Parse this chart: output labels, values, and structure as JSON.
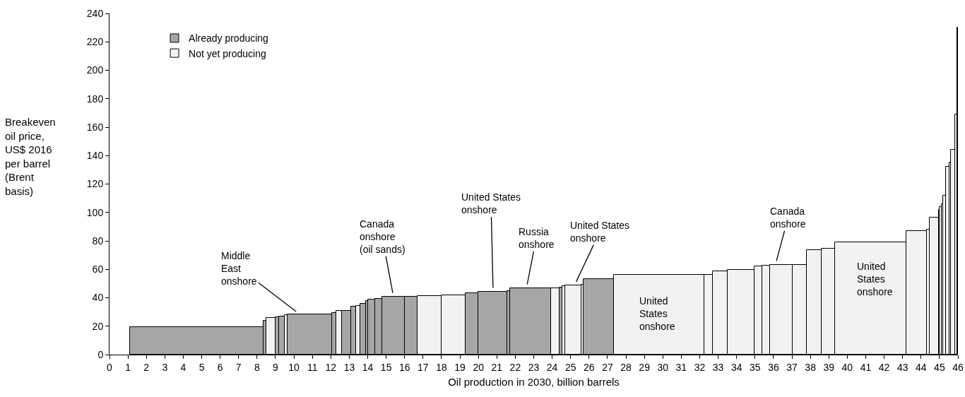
{
  "chart_data": {
    "type": "bar",
    "xlabel": "Oil production in 2030, billion barrels",
    "ylabel": "Breakeven oil price, US$ 2016 per barrel (Brent basis)",
    "x": [
      4.725,
      8.425,
      8.75,
      9.1,
      9.35,
      9.575,
      10.85,
      12.175,
      12.45,
      12.85,
      13.225,
      13.475,
      13.75,
      13.95,
      14.2,
      14.6,
      15.4,
      16.35,
      17.35,
      18.65,
      19.65,
      20.775,
      21.625,
      22.825,
      24.175,
      24.475,
      24.625,
      25.15,
      25.65,
      26.525,
      29.8,
      32.475,
      33.1,
      34.225,
      35.175,
      35.6,
      36.425,
      37.425,
      38.2,
      38.975,
      41.275,
      43.75,
      44.375,
      44.7,
      44.975,
      45.05,
      45.15,
      45.275,
      45.45,
      45.575,
      45.725,
      45.9,
      45.975
    ],
    "series": [
      {
        "name": "Already producing",
        "color": "#a6a6a6",
        "values": [
          19.5,
          24,
          null,
          26.5,
          27,
          null,
          28.5,
          29.5,
          null,
          31,
          34,
          null,
          36,
          38,
          39,
          39.5,
          40.5,
          40.5,
          null,
          null,
          43,
          44,
          44.5,
          46.5,
          null,
          47,
          null,
          null,
          null,
          53,
          null,
          null,
          null,
          null,
          null,
          null,
          null,
          null,
          null,
          null,
          null,
          null,
          null,
          null,
          null,
          null,
          null,
          null,
          null,
          null,
          null,
          null,
          null
        ]
      },
      {
        "name": "Not yet producing",
        "color": "#f2f2f2",
        "values": [
          null,
          null,
          26,
          null,
          null,
          28,
          null,
          null,
          31,
          null,
          null,
          34.5,
          null,
          null,
          null,
          null,
          null,
          null,
          41,
          41.5,
          null,
          null,
          null,
          null,
          46.5,
          null,
          48,
          48.5,
          49,
          null,
          56,
          56,
          58.5,
          59.5,
          62,
          62.5,
          63,
          63,
          73.5,
          74.5,
          79,
          87,
          88,
          96.5,
          102,
          104,
          106,
          112,
          132,
          135,
          144,
          169,
          230
        ]
      }
    ],
    "xlim": [
      0,
      46
    ],
    "xticks": [
      0,
      1,
      2,
      3,
      4,
      5,
      6,
      7,
      8,
      9,
      10,
      11,
      12,
      13,
      14,
      15,
      16,
      17,
      18,
      19,
      20,
      21,
      22,
      23,
      24,
      25,
      26,
      27,
      28,
      29,
      30,
      31,
      32,
      33,
      34,
      35,
      36,
      37,
      38,
      39,
      40,
      41,
      42,
      43,
      44,
      45,
      46
    ],
    "ylim": [
      0,
      240
    ],
    "yticks": [
      0,
      20,
      40,
      60,
      80,
      100,
      120,
      140,
      160,
      180,
      200,
      220,
      240
    ],
    "grid": false,
    "legend": "top left",
    "annotations": [
      {
        "text": "Middle East onshore",
        "x": 10.3,
        "y": 28.5
      },
      {
        "text": "Canada onshore (oil sands)",
        "x": 15.4,
        "y": 40.5
      },
      {
        "text": "United States onshore",
        "x": 20.8,
        "y": 44
      },
      {
        "text": "Russia onshore",
        "x": 22.6,
        "y": 46.5
      },
      {
        "text": "United States onshore",
        "x": 25.2,
        "y": 48.5
      },
      "United States onshore",
      {
        "text": "Canada onshore",
        "x": 36.1,
        "y": 63
      },
      "United States onshore"
    ]
  }
}
